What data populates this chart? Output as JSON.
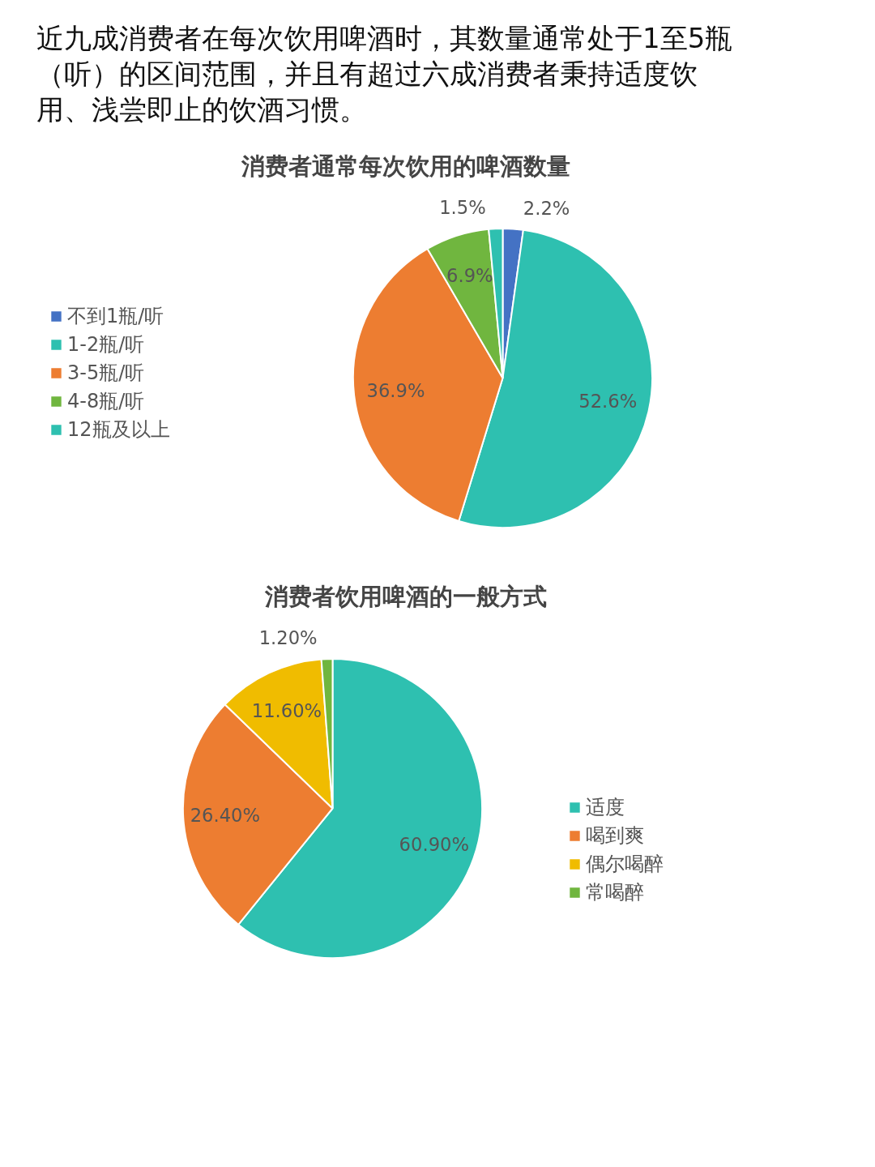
{
  "chart_data": [
    {
      "type": "other",
      "title": "近九成消费者在每次饮用啤酒时，其数量通常处于1至5瓶（听）的区间范围，并且有超过六成消费者秉持适度饮用、浅尝即止的饮酒习惯。"
    },
    {
      "type": "pie",
      "title": "消费者通常每次饮用的啤酒数量",
      "categories": [
        "不到1瓶/听",
        "1-2瓶/听",
        "3-5瓶/听",
        "4-8瓶/听",
        "12瓶及以上"
      ],
      "values": [
        2.2,
        52.6,
        36.9,
        6.9,
        1.5
      ],
      "colors": [
        "#4472c4",
        "#2ec0b0",
        "#ed7d31",
        "#70b63f",
        "#2ec0b0"
      ],
      "value_labels": [
        "2.2%",
        "52.6%",
        "36.9%",
        "6.9%",
        "1.5%"
      ],
      "legend": "left"
    },
    {
      "type": "pie",
      "title": "消费者饮用啤酒的一般方式",
      "categories": [
        "适度",
        "喝到爽",
        "偶尔喝醉",
        "常喝醉"
      ],
      "values": [
        60.9,
        26.4,
        11.6,
        1.2
      ],
      "colors": [
        "#2ec0b0",
        "#ed7d31",
        "#f0bc00",
        "#70b63f"
      ],
      "value_labels": [
        "60.90%",
        "26.40%",
        "11.60%",
        "1.20%"
      ],
      "legend": "right"
    }
  ]
}
